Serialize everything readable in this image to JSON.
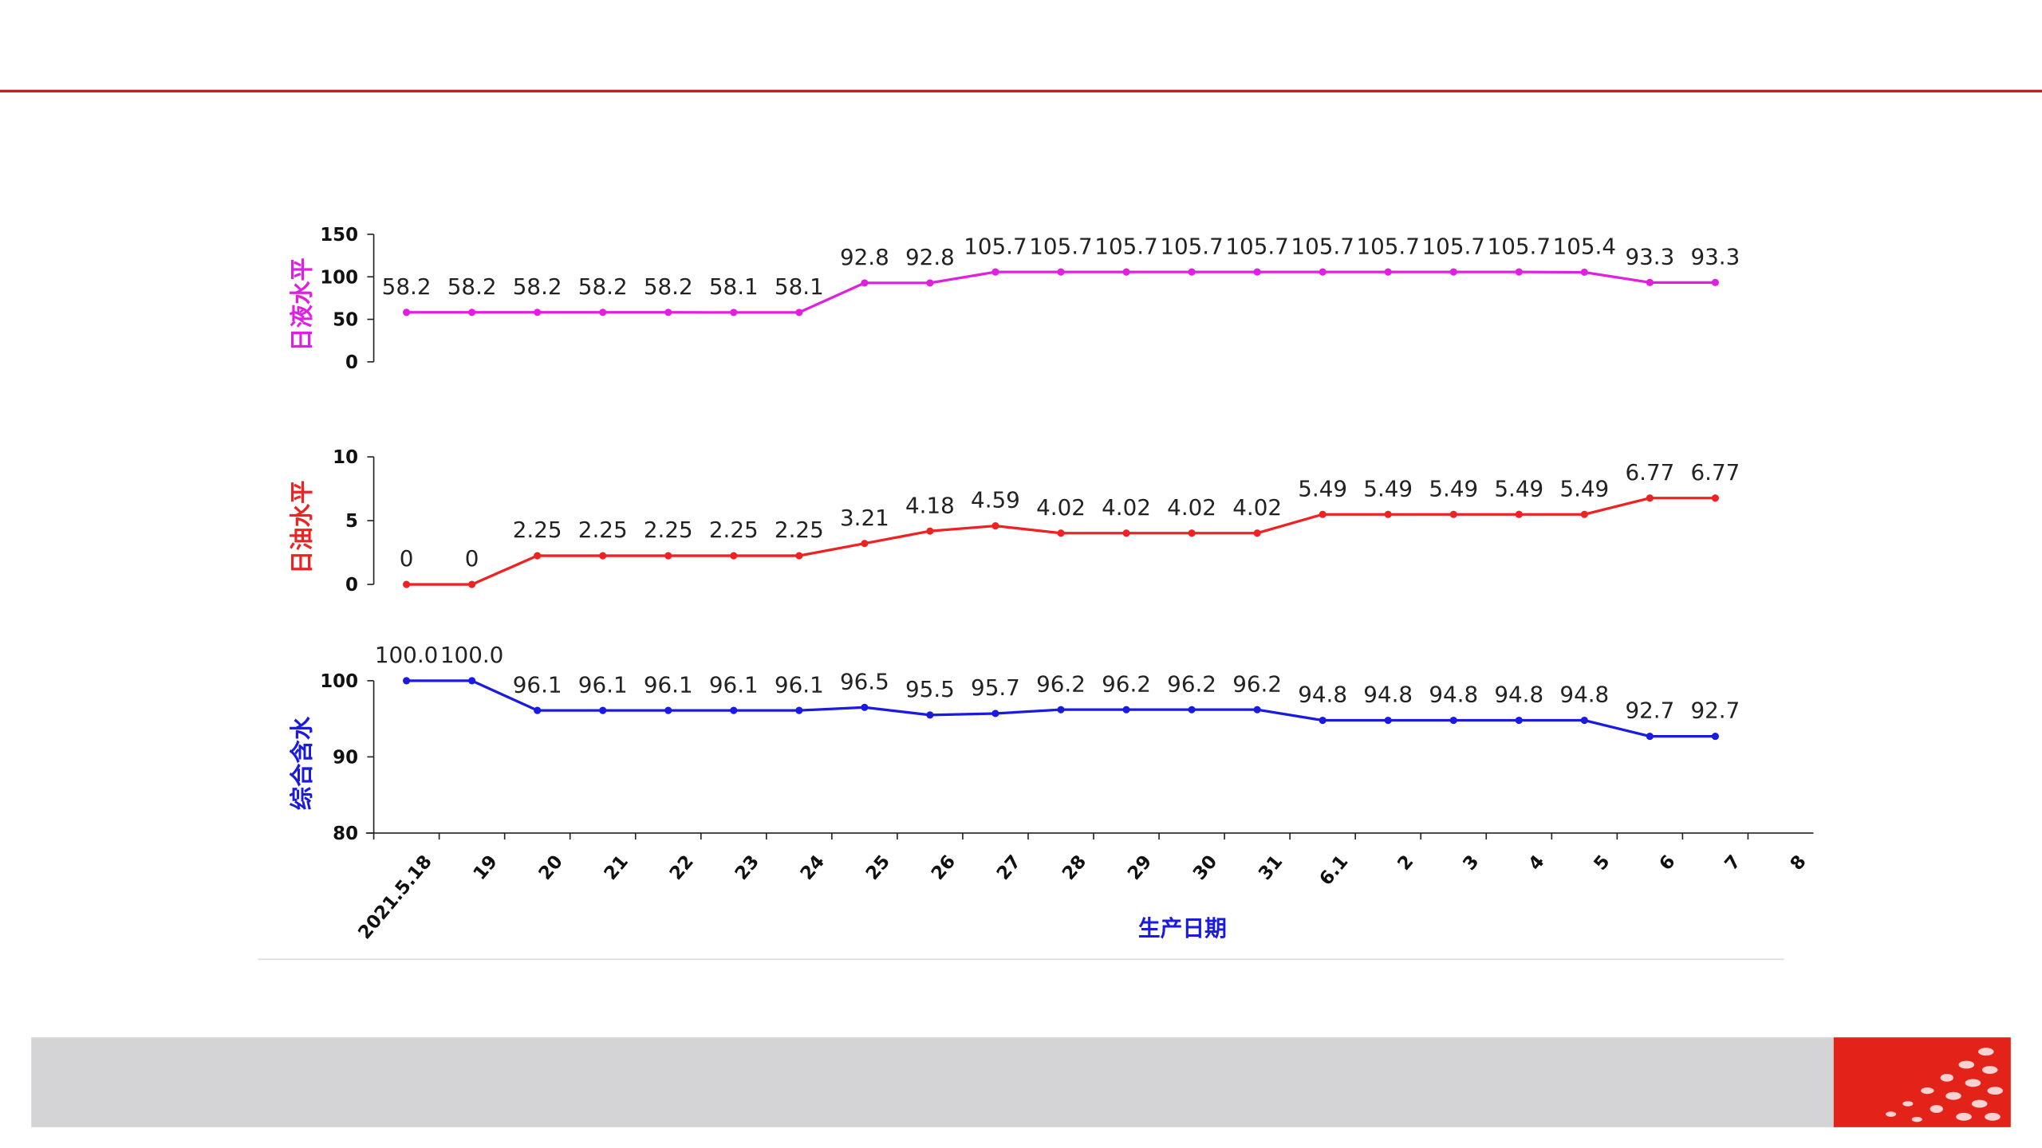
{
  "chart_data": [
    {
      "type": "line",
      "ylabel": "日液水平",
      "color": "#e020e0",
      "ylim": [
        0,
        150
      ],
      "yticks": [
        0,
        50,
        100,
        150
      ],
      "values": [
        58.2,
        58.2,
        58.2,
        58.2,
        58.2,
        58.1,
        58.1,
        92.8,
        92.8,
        105.7,
        105.7,
        105.7,
        105.7,
        105.7,
        105.7,
        105.7,
        105.7,
        105.7,
        105.4,
        93.3,
        93.3,
        null
      ]
    },
    {
      "type": "line",
      "ylabel": "日油水平",
      "color": "#ee2222",
      "ylim": [
        0,
        10
      ],
      "yticks": [
        0,
        5,
        10
      ],
      "values": [
        0,
        0,
        2.25,
        2.25,
        2.25,
        2.25,
        2.25,
        3.21,
        4.18,
        4.59,
        4.02,
        4.02,
        4.02,
        4.02,
        5.49,
        5.49,
        5.49,
        5.49,
        5.49,
        6.77,
        6.77,
        null
      ]
    },
    {
      "type": "line",
      "ylabel": "综合含水",
      "xlabel": "生产日期",
      "color": "#1a1ae0",
      "ylim": [
        80,
        100
      ],
      "yticks": [
        80,
        90,
        100
      ],
      "categories": [
        "2021.5.18",
        "19",
        "20",
        "21",
        "22",
        "23",
        "24",
        "25",
        "26",
        "27",
        "28",
        "29",
        "30",
        "31",
        "6.1",
        "2",
        "3",
        "4",
        "5",
        "6",
        "7",
        "8"
      ],
      "values": [
        100,
        100,
        96.1,
        96.1,
        96.1,
        96.1,
        96.1,
        96.5,
        95.5,
        95.7,
        96.2,
        96.2,
        96.2,
        96.2,
        94.8,
        94.8,
        94.8,
        94.8,
        94.8,
        92.7,
        92.7,
        null
      ],
      "value_labels": [
        "100.0",
        "100.0",
        "96.1",
        "96.1",
        "96.1",
        "96.1",
        "96.1",
        "96.5",
        "95.5",
        "95.7",
        "96.2",
        "96.2",
        "96.2",
        "96.2",
        "94.8",
        "94.8",
        "94.8",
        "94.8",
        "94.8",
        "92.7",
        "92.7",
        null
      ]
    }
  ]
}
